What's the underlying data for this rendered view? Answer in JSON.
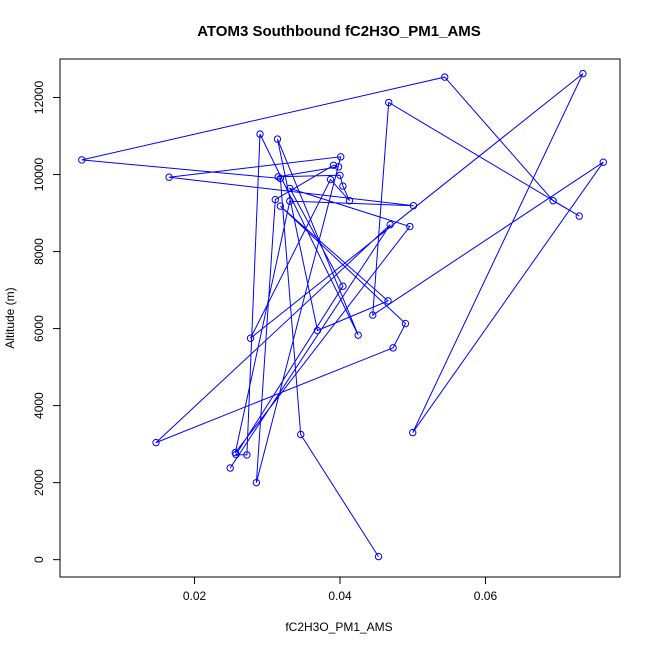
{
  "chart_data": {
    "type": "line",
    "title": "ATOM3 Southbound fC2H3O_PM1_AMS",
    "xlabel": "fC2H3O_PM1_AMS",
    "ylabel": "Altitude (m)",
    "xlim": [
      0.0015,
      0.0785
    ],
    "ylim": [
      -450,
      13000
    ],
    "x_ticks": [
      0.02,
      0.04,
      0.06
    ],
    "x_tick_labels": [
      "0.02",
      "0.04",
      "0.06"
    ],
    "y_ticks": [
      0,
      2000,
      4000,
      6000,
      8000,
      10000,
      12000
    ],
    "y_tick_labels": [
      "0",
      "2000",
      "4000",
      "6000",
      "8000",
      "10000",
      "12000"
    ],
    "grid": false,
    "line_color": "#0000ff",
    "marker": "open-circle",
    "series": [
      {
        "x": [
          0.0453,
          0.0346,
          0.0318,
          0.0045,
          0.0544,
          0.0693,
          0.0729,
          0.0467,
          0.0445,
          0.0762,
          0.05,
          0.0734,
          0.0277,
          0.0387,
          0.0413,
          0.0404,
          0.04,
          0.0315,
          0.0398,
          0.0391,
          0.0311,
          0.0285,
          0.0401,
          0.0165,
          0.0501,
          0.0331,
          0.0256,
          0.0496,
          0.0331,
          0.0404,
          0.0257,
          0.0272,
          0.029,
          0.0425,
          0.0314,
          0.0369,
          0.0466,
          0.0318,
          0.049,
          0.0473,
          0.0147,
          0.0469,
          0.0249
        ],
        "y": [
          80,
          3250,
          9900,
          10380,
          12530,
          9320,
          8920,
          11870,
          6350,
          10320,
          3300,
          12620,
          5750,
          9870,
          9320,
          9700,
          9980,
          9940,
          10200,
          10240,
          9350,
          2000,
          10460,
          9930,
          9190,
          9310,
          2780,
          8650,
          9640,
          7100,
          2730,
          2720,
          11050,
          5830,
          10920,
          5950,
          6720,
          9180,
          6130,
          5500,
          3040,
          8700,
          2380
        ]
      }
    ]
  }
}
